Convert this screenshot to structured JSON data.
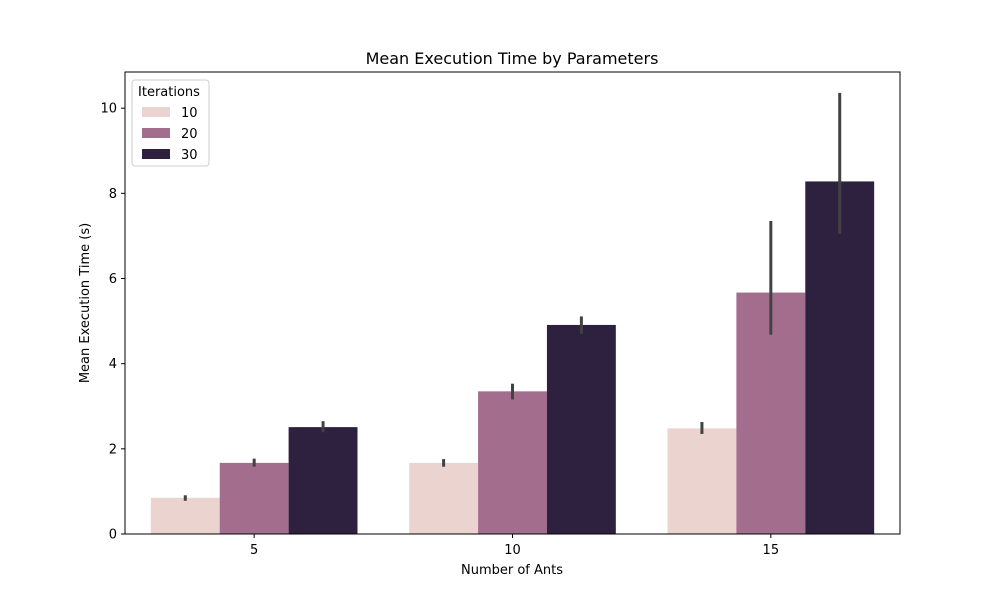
{
  "chart_data": {
    "type": "bar",
    "title": "Mean Execution Time by Parameters",
    "xlabel": "Number of Ants",
    "ylabel": "Mean Execution Time (s)",
    "categories": [
      "5",
      "10",
      "15"
    ],
    "ylim": [
      0,
      10.85
    ],
    "yticks": [
      0,
      2,
      4,
      6,
      8,
      10
    ],
    "legend": {
      "title": "Iterations",
      "placement": "top-left"
    },
    "series": [
      {
        "name": "10",
        "color": "#ebd3cf",
        "values": [
          0.85,
          1.67,
          2.48
        ],
        "ci": [
          [
            0.78,
            0.91
          ],
          [
            1.58,
            1.76
          ],
          [
            2.35,
            2.63
          ]
        ]
      },
      {
        "name": "20",
        "color": "#a36e8d",
        "values": [
          1.67,
          3.35,
          5.67
        ],
        "ci": [
          [
            1.58,
            1.77
          ],
          [
            3.16,
            3.53
          ],
          [
            4.68,
            7.35
          ]
        ]
      },
      {
        "name": "30",
        "color": "#2e2140",
        "values": [
          2.51,
          4.91,
          8.28
        ],
        "ci": [
          [
            2.39,
            2.65
          ],
          [
            4.7,
            5.11
          ],
          [
            7.05,
            10.36
          ]
        ]
      }
    ],
    "errorbar_color": "#424242",
    "grid": false
  }
}
